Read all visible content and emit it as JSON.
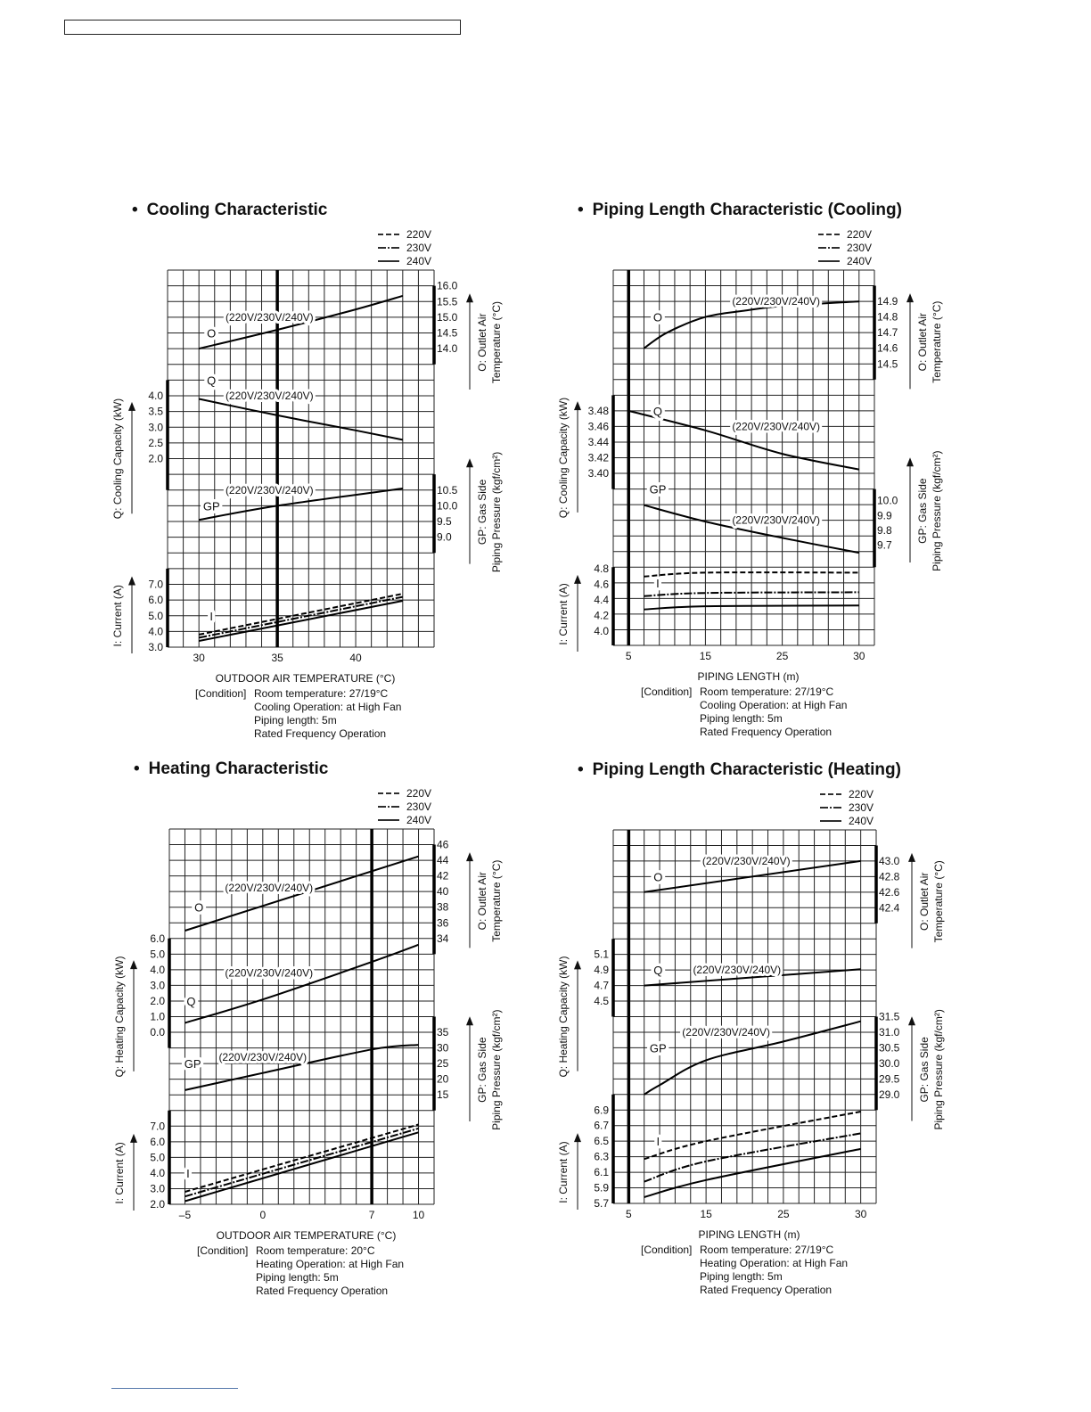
{
  "chart_data": [
    {
      "type": "line",
      "bullet": "•",
      "title": "Cooling Characteristic",
      "legend": [
        "220V",
        "230V",
        "240V"
      ],
      "xlabel": "OUTDOOR AIR TEMPERATURE (°C)",
      "xtick_values": [
        30,
        35,
        40
      ],
      "xtick_labels": [
        "30",
        "35",
        "40"
      ],
      "condition_label": "[Condition]",
      "conditions": [
        "Room temperature: 27/19°C",
        "Cooling Operation: at High Fan",
        "Piping length: 5m",
        "Rated Frequency Operation"
      ],
      "panels": [
        {
          "id": "O",
          "curve_label": "O",
          "voltage_label": "(220V/230V/240V)",
          "axis_title": [
            "O: Outlet Air",
            "Temperature (°C)"
          ],
          "ticks": [
            "16.0",
            "15.5",
            "15.0",
            "14.5",
            "14.0"
          ],
          "series": [
            {
              "name": "220V/230V/240V",
              "x": [
                30,
                35,
                40,
                43
              ],
              "y": [
                14.0,
                14.6,
                15.25,
                15.68
              ]
            }
          ]
        },
        {
          "id": "Q",
          "curve_label": "Q",
          "voltage_label": "(220V/230V/240V)",
          "axis_title": [
            "Q: Cooling Capacity (kW)"
          ],
          "ticks": [
            "4.0",
            "3.5",
            "3.0",
            "2.5",
            "2.0"
          ],
          "series": [
            {
              "name": "220V/230V/240V",
              "x": [
                30,
                35,
                40,
                43
              ],
              "y": [
                3.9,
                3.38,
                2.9,
                2.6
              ]
            }
          ]
        },
        {
          "id": "GP",
          "curve_label": "GP",
          "voltage_label": "(220V/230V/240V)",
          "axis_title": [
            "GP: Gas Side",
            "Piping Pressure (kgf/cm²)"
          ],
          "ticks": [
            "10.5",
            "10.0",
            "9.5",
            "9.0"
          ],
          "series": [
            {
              "name": "220V/230V/240V",
              "x": [
                30,
                35,
                43
              ],
              "y": [
                9.55,
                10.0,
                10.55
              ]
            }
          ]
        },
        {
          "id": "I",
          "curve_label": "I",
          "axis_title": [
            "I: Current (A)"
          ],
          "ticks": [
            "7.0",
            "6.0",
            "5.0",
            "4.0",
            "3.0"
          ],
          "series": [
            {
              "name": "220V",
              "x": [
                30,
                43
              ],
              "y": [
                3.8,
                6.4
              ]
            },
            {
              "name": "230V",
              "x": [
                30,
                43
              ],
              "y": [
                3.6,
                6.2
              ]
            },
            {
              "name": "240V",
              "x": [
                30,
                43
              ],
              "y": [
                3.4,
                5.95
              ]
            }
          ]
        }
      ]
    },
    {
      "type": "line",
      "bullet": "•",
      "title": "Piping Length Characteristic (Cooling)",
      "legend": [
        "220V",
        "230V",
        "240V"
      ],
      "xlabel": "PIPING LENGTH (m)",
      "xtick_values": [
        5,
        15,
        25,
        30
      ],
      "xtick_labels": [
        "5",
        "15",
        "25",
        "30"
      ],
      "condition_label": "[Condition]",
      "conditions": [
        "Room temperature: 27/19°C",
        "Cooling Operation: at High Fan",
        "Piping length: 5m",
        "Rated Frequency Operation"
      ],
      "panels": [
        {
          "id": "O",
          "curve_label": "O",
          "voltage_label": "(220V/230V/240V)",
          "axis_title": [
            "O: Outlet Air",
            "Temperature (°C)"
          ],
          "ticks": [
            "14.9",
            "14.8",
            "14.7",
            "14.6",
            "14.5"
          ],
          "series": [
            {
              "name": "220V/230V/240V",
              "x": [
                7,
                10,
                15,
                20,
                25,
                30
              ],
              "y": [
                14.6,
                14.7,
                14.8,
                14.84,
                14.87,
                14.9
              ]
            }
          ]
        },
        {
          "id": "Q",
          "curve_label": "Q",
          "voltage_label": "(220V/230V/240V)",
          "axis_title": [
            "Q: Cooling Capacity (kW)"
          ],
          "ticks": [
            "3.48",
            "3.46",
            "3.44",
            "3.42",
            "3.40"
          ],
          "series": [
            {
              "name": "220V/230V/240V",
              "x": [
                5,
                15,
                25,
                30
              ],
              "y": [
                3.48,
                3.455,
                3.425,
                3.405
              ]
            }
          ]
        },
        {
          "id": "GP",
          "curve_label": "GP",
          "voltage_label": "(220V/230V/240V)",
          "axis_title": [
            "GP: Gas Side",
            "Piping Pressure (kgf/cm²)"
          ],
          "ticks": [
            "10.0",
            "9.9",
            "9.8",
            "9.7"
          ],
          "series": [
            {
              "name": "220V/230V/240V",
              "x": [
                7,
                15,
                25,
                30
              ],
              "y": [
                9.97,
                9.86,
                9.75,
                9.65
              ]
            }
          ]
        },
        {
          "id": "I",
          "curve_label": "I",
          "axis_title": [
            "I: Current (A)"
          ],
          "ticks": [
            "4.8",
            "4.6",
            "4.4",
            "4.2",
            "4.0"
          ],
          "series": [
            {
              "name": "220V",
              "x": [
                7,
                15,
                30
              ],
              "y": [
                4.7,
                4.75,
                4.75
              ]
            },
            {
              "name": "230V",
              "x": [
                7,
                15,
                30
              ],
              "y": [
                4.45,
                4.49,
                4.5
              ]
            },
            {
              "name": "240V",
              "x": [
                7,
                15,
                30
              ],
              "y": [
                4.28,
                4.32,
                4.33
              ]
            }
          ]
        }
      ]
    },
    {
      "type": "line",
      "bullet": "•",
      "title": "Heating Characteristic",
      "legend": [
        "220V",
        "230V",
        "240V"
      ],
      "xlabel": "OUTDOOR AIR TEMPERATURE (°C)",
      "xtick_values": [
        -5,
        0,
        7,
        10
      ],
      "xtick_labels": [
        "–5",
        "0",
        "7",
        "10"
      ],
      "condition_label": "[Condition]",
      "conditions": [
        "Room temperature: 20°C",
        "Heating Operation: at High Fan",
        "Piping length: 5m",
        "Rated Frequency Operation"
      ],
      "panels": [
        {
          "id": "O",
          "curve_label": "O",
          "voltage_label": "(220V/230V/240V)",
          "axis_title": [
            "O: Outlet Air",
            "Temperature (°C)"
          ],
          "ticks": [
            "46",
            "44",
            "42",
            "40",
            "38",
            "36",
            "34"
          ],
          "series": [
            {
              "name": "220V/230V/240V",
              "x": [
                -5,
                10
              ],
              "y": [
                35,
                44.5
              ]
            }
          ]
        },
        {
          "id": "Q",
          "curve_label": "Q",
          "voltage_label": "(220V/230V/240V)",
          "axis_title": [
            "Q: Heating Capacity (kW)"
          ],
          "ticks": [
            "6.0",
            "5.0",
            "4.0",
            "3.0",
            "2.0",
            "1.0",
            "0.0"
          ],
          "series": [
            {
              "name": "220V/230V/240V",
              "x": [
                -5,
                0,
                7,
                10
              ],
              "y": [
                0.6,
                2.1,
                4.5,
                5.6
              ]
            }
          ]
        },
        {
          "id": "GP",
          "curve_label": "GP",
          "voltage_label": "(220V/230V/240V)",
          "axis_title": [
            "GP: Gas Side",
            "Piping Pressure (kgf/cm²)"
          ],
          "ticks": [
            "35",
            "30",
            "25",
            "20",
            "15"
          ],
          "series": [
            {
              "name": "220V/230V/240V",
              "x": [
                -5,
                0,
                7,
                10
              ],
              "y": [
                16.5,
                22,
                29.5,
                31
              ]
            }
          ]
        },
        {
          "id": "I",
          "curve_label": "I",
          "axis_title": [
            "I: Current (A)"
          ],
          "ticks": [
            "7.0",
            "6.0",
            "5.0",
            "4.0",
            "3.0",
            "2.0"
          ],
          "series": [
            {
              "name": "220V",
              "x": [
                -5,
                10
              ],
              "y": [
                2.8,
                7.1
              ]
            },
            {
              "name": "230V",
              "x": [
                -5,
                10
              ],
              "y": [
                2.5,
                6.85
              ]
            },
            {
              "name": "240V",
              "x": [
                -5,
                10
              ],
              "y": [
                2.2,
                6.6
              ]
            }
          ]
        }
      ]
    },
    {
      "type": "line",
      "bullet": "•",
      "title": "Piping Length Characteristic (Heating)",
      "legend": [
        "220V",
        "230V",
        "240V"
      ],
      "xlabel": "PIPING LENGTH (m)",
      "xtick_values": [
        5,
        15,
        25,
        30
      ],
      "xtick_labels": [
        "5",
        "15",
        "25",
        "30"
      ],
      "condition_label": "[Condition]",
      "conditions": [
        "Room temperature: 27/19°C",
        "Heating Operation: at High Fan",
        "Piping length: 5m",
        "Rated Frequency Operation"
      ],
      "panels": [
        {
          "id": "O",
          "curve_label": "O",
          "voltage_label": "(220V/230V/240V)",
          "axis_title": [
            "O: Outlet Air",
            "Temperature (°C)"
          ],
          "ticks": [
            "43.0",
            "42.8",
            "42.6",
            "42.4"
          ],
          "series": [
            {
              "name": "220V/230V/240V",
              "x": [
                7,
                30
              ],
              "y": [
                42.6,
                43.0
              ]
            }
          ]
        },
        {
          "id": "Q",
          "curve_label": "Q",
          "voltage_label": "(220V/230V/240V)",
          "axis_title": [
            "Q: Heating Capacity (kW)"
          ],
          "ticks": [
            "5.1",
            "4.9",
            "4.7",
            "4.5"
          ],
          "series": [
            {
              "name": "220V/230V/240V",
              "x": [
                7,
                30
              ],
              "y": [
                4.7,
                4.91
              ]
            }
          ]
        },
        {
          "id": "GP",
          "curve_label": "GP",
          "voltage_label": "(220V/230V/240V)",
          "axis_title": [
            "GP: Gas Side",
            "Piping Pressure (kgf/cm²)"
          ],
          "ticks": [
            "31.5",
            "31.0",
            "30.5",
            "30.0",
            "29.5",
            "29.0"
          ],
          "series": [
            {
              "name": "220V/230V/240V",
              "x": [
                7,
                9,
                15,
                25,
                30
              ],
              "y": [
                29.0,
                29.3,
                30.1,
                30.7,
                31.35
              ]
            }
          ]
        },
        {
          "id": "I",
          "curve_label": "I",
          "axis_title": [
            "I: Current (A)"
          ],
          "ticks": [
            "6.9",
            "6.7",
            "6.5",
            "6.3",
            "6.1",
            "5.9",
            "5.7"
          ],
          "series": [
            {
              "name": "220V",
              "x": [
                7,
                15,
                30
              ],
              "y": [
                6.27,
                6.5,
                6.88
              ]
            },
            {
              "name": "230V",
              "x": [
                7,
                15,
                30
              ],
              "y": [
                5.98,
                6.24,
                6.6
              ]
            },
            {
              "name": "240V",
              "x": [
                7,
                15,
                30
              ],
              "y": [
                5.78,
                6.0,
                6.4
              ]
            }
          ]
        }
      ]
    }
  ]
}
